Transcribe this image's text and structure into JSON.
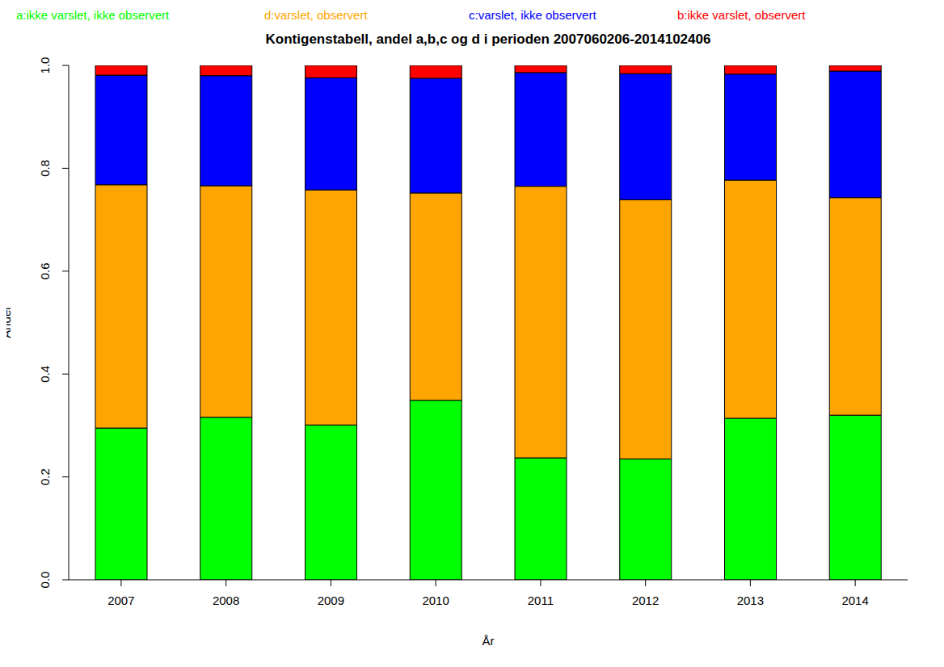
{
  "chart_data": {
    "type": "bar",
    "title": "Kontigenstabell, andel a,b,c og d i perioden 2007060206-2014102406",
    "x_label": "År",
    "y_label": "Andel",
    "categories": [
      "2007",
      "2008",
      "2009",
      "2010",
      "2011",
      "2012",
      "2013",
      "2014"
    ],
    "series": [
      {
        "name": "a:ikke varslet, ikke observert",
        "color": "#00ff00",
        "values": [
          0.295,
          0.316,
          0.301,
          0.349,
          0.237,
          0.235,
          0.314,
          0.32
        ]
      },
      {
        "name": "d:varslet, observert",
        "color": "#ffa500",
        "values": [
          0.473,
          0.45,
          0.457,
          0.403,
          0.528,
          0.504,
          0.463,
          0.423
        ]
      },
      {
        "name": "c:varslet, ikke observert",
        "color": "#0000ff",
        "values": [
          0.213,
          0.214,
          0.218,
          0.223,
          0.221,
          0.245,
          0.206,
          0.246
        ]
      },
      {
        "name": "b:ikke varslet, observert",
        "color": "#ff0000",
        "values": [
          0.019,
          0.02,
          0.024,
          0.025,
          0.014,
          0.016,
          0.017,
          0.011
        ]
      }
    ],
    "ylim": [
      0,
      1
    ],
    "yticks": [
      {
        "value": 0,
        "label": "0.0"
      },
      0.2,
      0.4,
      0.6,
      0.8,
      {
        "value": 1,
        "label": "1.0"
      }
    ],
    "stacked": true,
    "grid": false,
    "legend": "top"
  }
}
